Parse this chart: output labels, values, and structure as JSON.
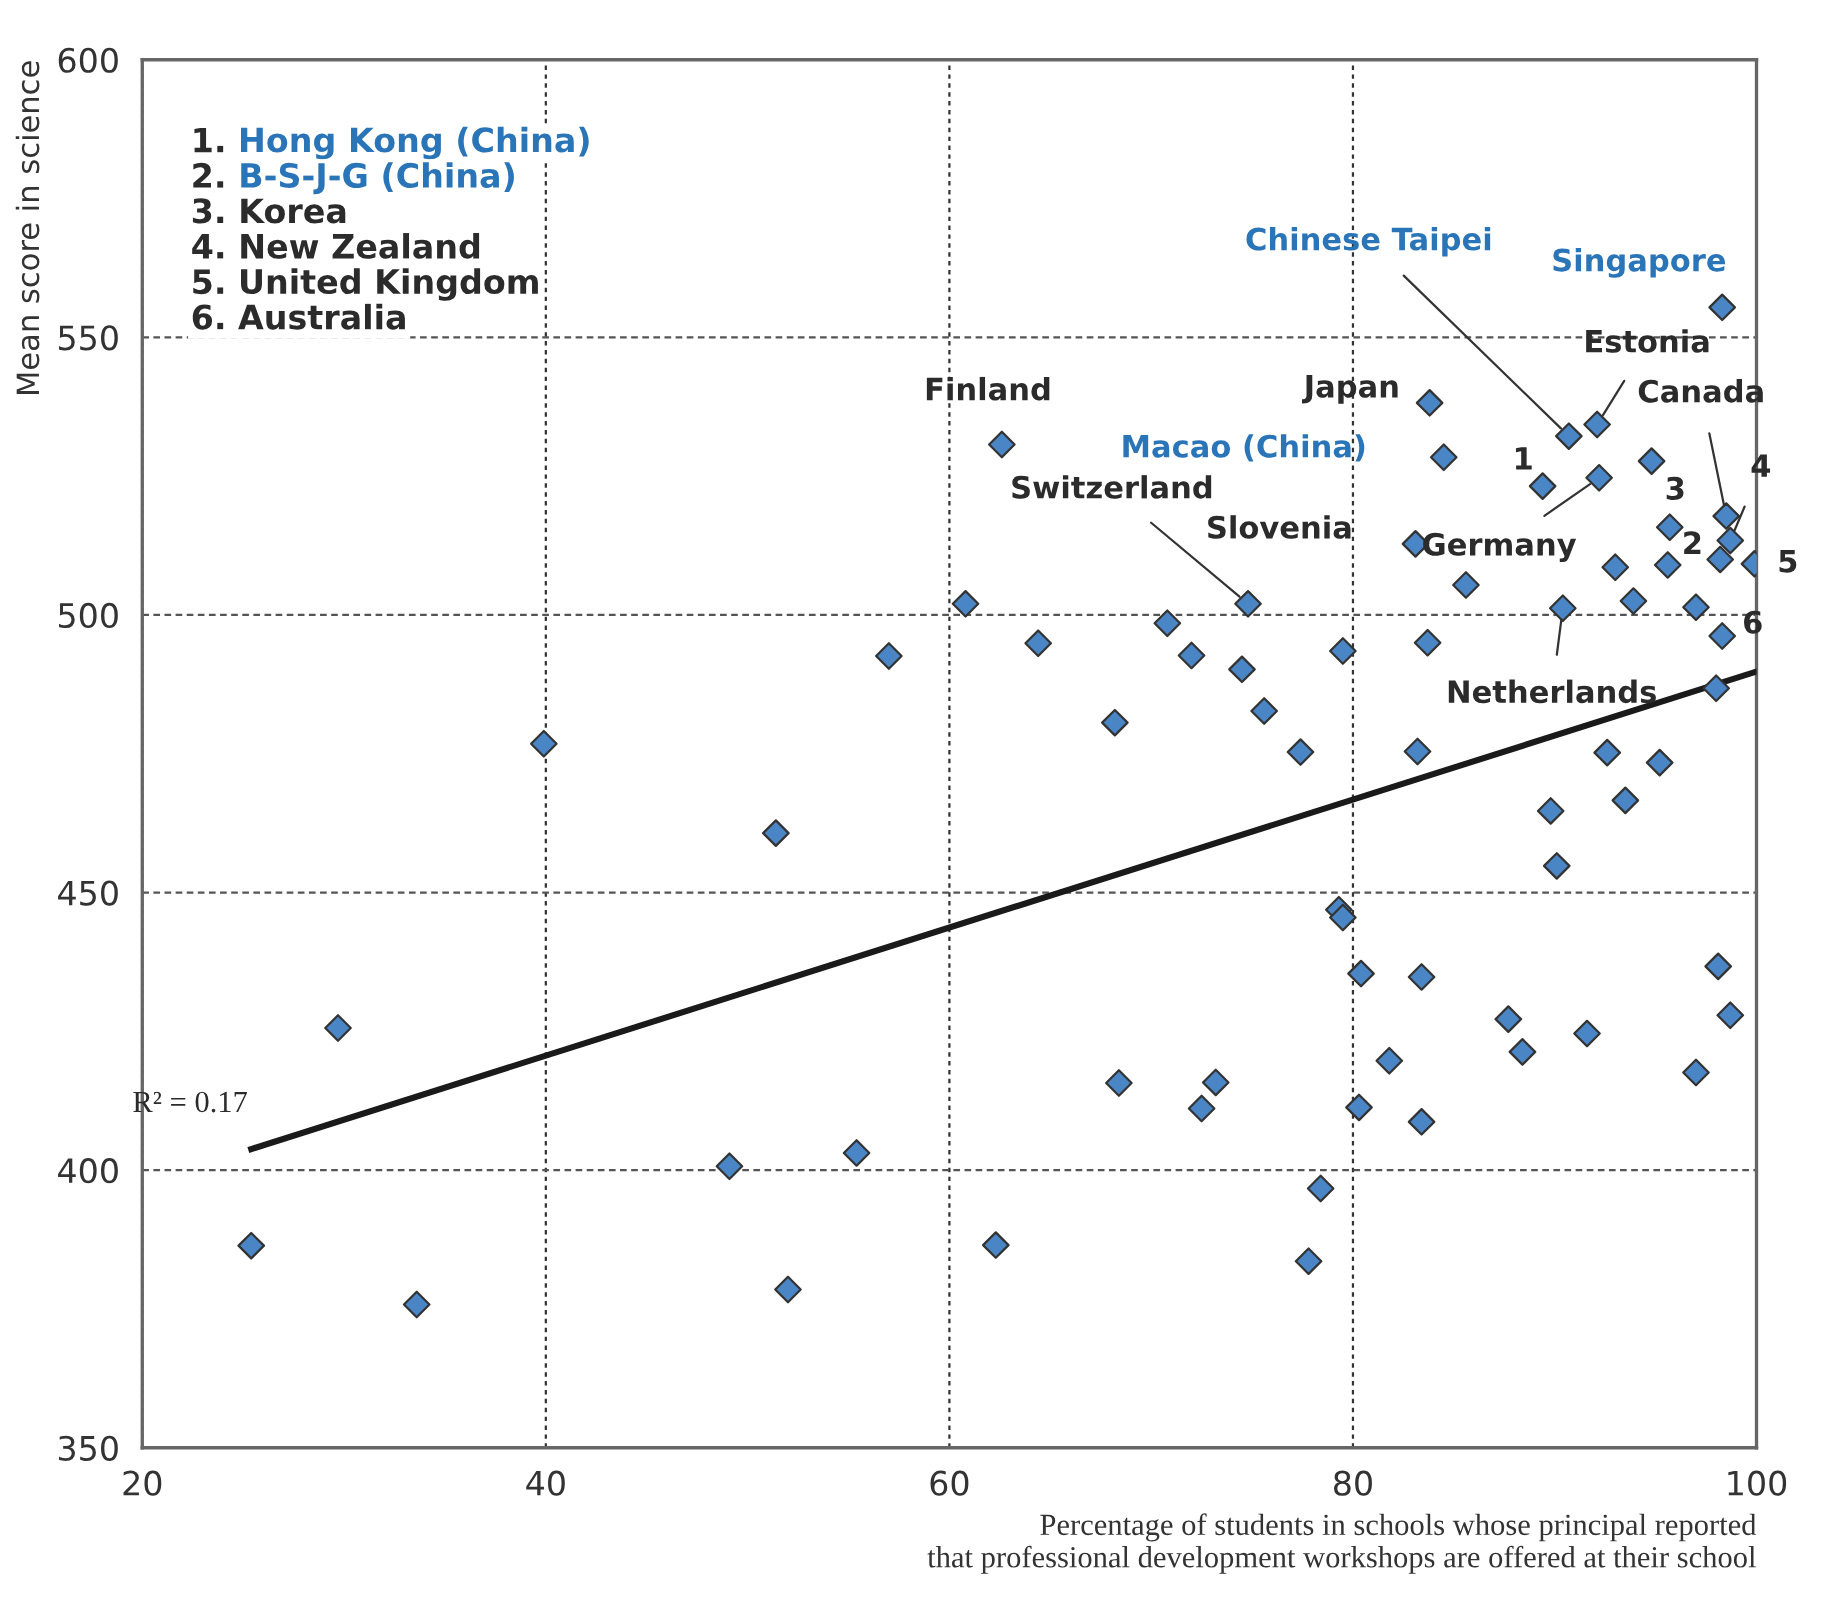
{
  "chart_data": {
    "type": "scatter",
    "xlabel": "Percentage of students in schools whose principal reported\nthat professional development workshops are offered at their school",
    "ylabel": "Mean score in science",
    "xlim": [
      20,
      100
    ],
    "xticks": [
      20,
      40,
      60,
      80,
      100
    ],
    "ylim": [
      350,
      600
    ],
    "yticks": [
      350,
      400,
      450,
      500,
      550,
      600
    ],
    "grid": true,
    "series": [
      {
        "marker": "diamond",
        "color": "#4a86c5",
        "x": [
          39.9,
          57.0,
          51.4,
          29.7,
          25.4,
          33.6,
          49.1,
          55.4,
          52.0,
          98.3,
          83.8,
          90.7,
          92.1,
          62.6,
          84.5,
          94.8,
          89.4,
          92.2,
          98.5,
          95.7,
          98.7,
          83.1,
          98.2,
          99.9,
          95.6,
          93.0,
          85.6,
          93.9,
          97.0,
          60.8,
          74.8,
          90.4,
          70.8,
          98.3,
          64.4,
          83.7,
          79.5,
          72.0,
          74.5,
          75.6,
          68.2,
          98.0,
          77.4,
          83.2,
          92.6,
          95.2,
          93.5,
          89.8,
          90.1,
          79.3,
          79.5,
          80.4,
          83.4,
          98.1,
          98.7,
          87.7,
          91.6,
          88.4,
          81.8,
          97.0,
          68.4,
          73.2,
          72.5,
          80.3,
          83.4,
          78.4,
          62.3,
          77.8
        ],
        "values": [
          476.8,
          492.6,
          460.7,
          425.6,
          386.4,
          375.8,
          400.7,
          403.1,
          378.5,
          555.4,
          538.2,
          532.2,
          534.3,
          530.7,
          528.4,
          527.7,
          523.2,
          524.7,
          517.8,
          515.8,
          513.4,
          512.8,
          510.0,
          509.2,
          509.0,
          508.6,
          505.4,
          502.5,
          501.4,
          502.0,
          502.0,
          501.2,
          498.5,
          496.2,
          494.9,
          495.0,
          493.5,
          492.7,
          490.2,
          482.7,
          480.6,
          486.8,
          475.3,
          475.4,
          475.2,
          473.4,
          466.6,
          464.7,
          454.8,
          446.9,
          445.5,
          435.4,
          434.8,
          436.7,
          427.9,
          427.2,
          424.6,
          421.3,
          419.7,
          417.6,
          415.7,
          415.8,
          411.1,
          411.3,
          408.7,
          396.7,
          386.5,
          383.6
        ]
      },
      {
        "type": "line",
        "color": "#1a1a1a",
        "x": [
          25.4,
          100
        ],
        "values": [
          403.8,
          489.8
        ]
      }
    ],
    "annotations": [
      {
        "text": "R² = 0.17",
        "x": 25.4,
        "y": 403.8
      },
      "1. Hong Kong (China)",
      "2. B-S-J-G (China)",
      "3. Korea",
      "4. New Zealand",
      "5. United Kingdom",
      "6. Australia",
      {
        "text": "Singapore",
        "x": 98.3,
        "y": 555.4
      },
      {
        "text": "Chinese Taipei",
        "x": 90.7,
        "y": 532.2
      },
      {
        "text": "Estonia",
        "x": 92.1,
        "y": 534.3
      },
      {
        "text": "Japan",
        "x": 83.8,
        "y": 538.2
      },
      {
        "text": "Finland",
        "x": 62.6,
        "y": 530.7
      },
      {
        "text": "Macao (China)",
        "x": 84.5,
        "y": 528.4
      },
      {
        "text": "1",
        "x": 89.4,
        "y": 523.2
      },
      {
        "text": "Germany",
        "x": 92.2,
        "y": 524.7
      },
      {
        "text": "Canada",
        "x": 98.5,
        "y": 517.8
      },
      {
        "text": "3",
        "x": 95.7,
        "y": 515.8
      },
      {
        "text": "4",
        "x": 98.7,
        "y": 513.4
      },
      {
        "text": "2",
        "x": 98.2,
        "y": 510.0
      },
      {
        "text": "5",
        "x": 99.9,
        "y": 509.2
      },
      {
        "text": "Slovenia",
        "x": 83.1,
        "y": 512.8
      },
      {
        "text": "Switzerland",
        "x": 74.8,
        "y": 502.0
      },
      {
        "text": "Netherlands",
        "x": 90.4,
        "y": 501.2
      },
      {
        "text": "6",
        "x": 98.3,
        "y": 496.2
      }
    ]
  }
}
